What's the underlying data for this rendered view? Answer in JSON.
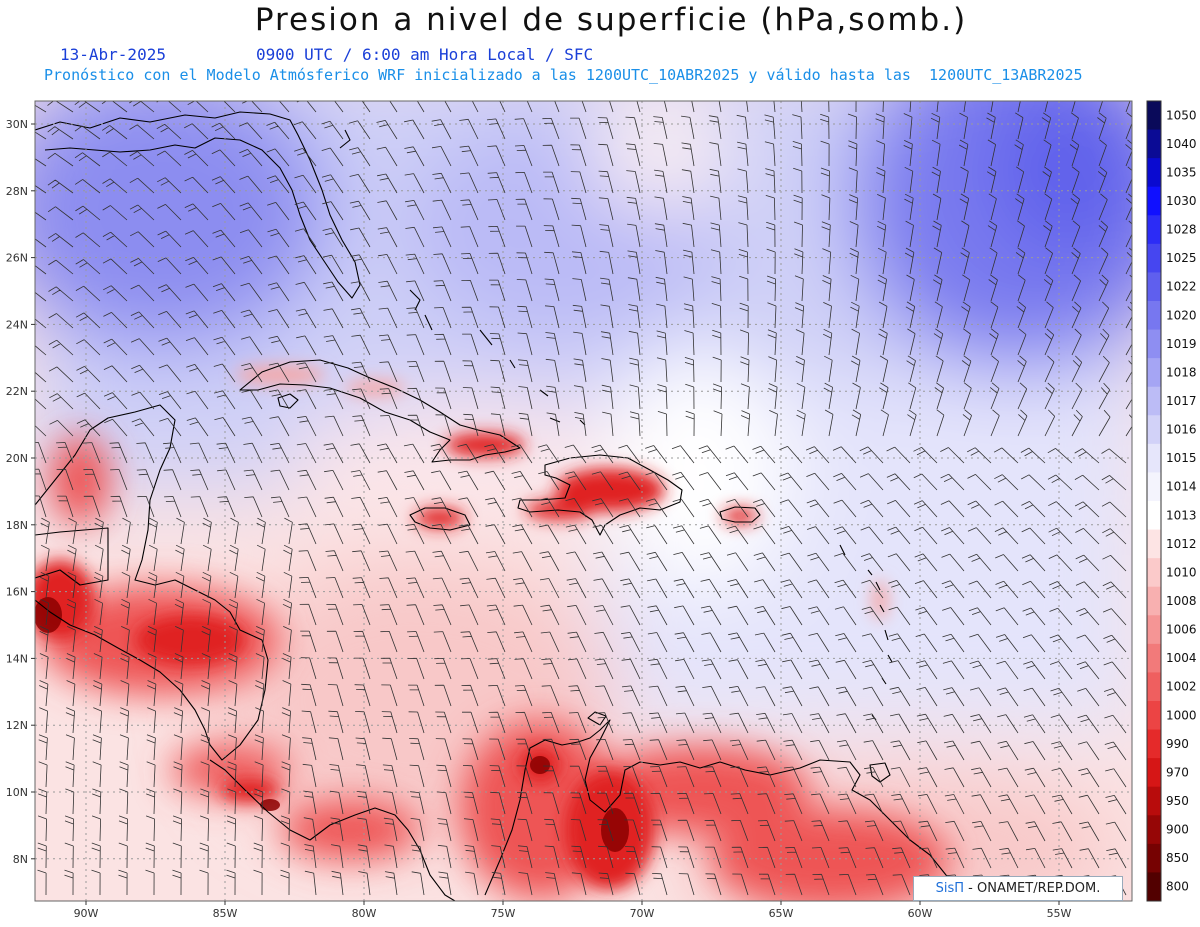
{
  "title": "Presion a nivel de superficie (hPa,somb.)",
  "date": "13-Abr-2025",
  "valid_time": "0900 UTC / 6:00 am Hora Local / SFC",
  "forecast_note": "Pronóstico con el Modelo Atmósferico WRF inicializado a las 1200UTC_10ABR2025 y válido hasta las  1200UTC_13ABR2025",
  "lat_labels": [
    "30N",
    "28N",
    "26N",
    "24N",
    "22N",
    "20N",
    "18N",
    "16N",
    "14N",
    "12N",
    "10N",
    "8N"
  ],
  "lon_labels": [
    "90W",
    "85W",
    "80W",
    "75W",
    "70W",
    "65W",
    "60W",
    "55W"
  ],
  "colorbar": {
    "levels": [
      "1050",
      "1040",
      "1035",
      "1030",
      "1028",
      "1025",
      "1022",
      "1020",
      "1019",
      "1018",
      "1017",
      "1016",
      "1015",
      "1014",
      "1013",
      "1012",
      "1010",
      "1008",
      "1006",
      "1004",
      "1002",
      "1000",
      "990",
      "970",
      "950",
      "900",
      "850",
      "800"
    ],
    "colors": [
      "#0a0a5a",
      "#0b0b95",
      "#0a0ad0",
      "#1010ff",
      "#2c2cf6",
      "#4646f0",
      "#5f5fee",
      "#7777f0",
      "#8e8ef2",
      "#a5a5f4",
      "#bcbcf6",
      "#d2d2f8",
      "#e6e6fb",
      "#f4f4fd",
      "#ffffff",
      "#fde4e4",
      "#fbcaca",
      "#f8b0b0",
      "#f59595",
      "#f27a7a",
      "#ef5f5f",
      "#ec4444",
      "#e52a2a",
      "#d61616",
      "#b80c0c",
      "#960606",
      "#760202",
      "#520000"
    ]
  },
  "credit": {
    "brand": "SisΠ",
    "org": " - ONAMET/REP.DOM."
  }
}
